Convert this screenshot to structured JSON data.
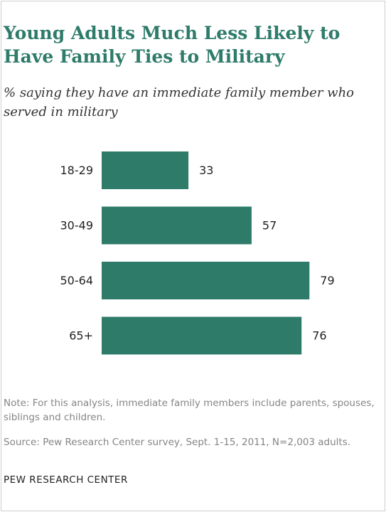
{
  "chart_data": {
    "type": "bar",
    "orientation": "horizontal",
    "title": "Young Adults Much Less Likely to Have Family Ties to Military",
    "subtitle": "% saying they have an immediate family member who served in military",
    "categories": [
      "18-29",
      "30-49",
      "50-64",
      "65+"
    ],
    "values": [
      33,
      57,
      79,
      76
    ],
    "xlim": [
      0,
      100
    ],
    "grid": false,
    "legend": "none",
    "bar_color": "#2e7b6a"
  },
  "notes": {
    "note": "Note: For this analysis, immediate family members include parents, spouses, siblings and children.",
    "source": "Source: Pew Research Center survey, Sept. 1-15, 2011, N=2,003 adults."
  },
  "brand": "PEW RESEARCH CENTER"
}
